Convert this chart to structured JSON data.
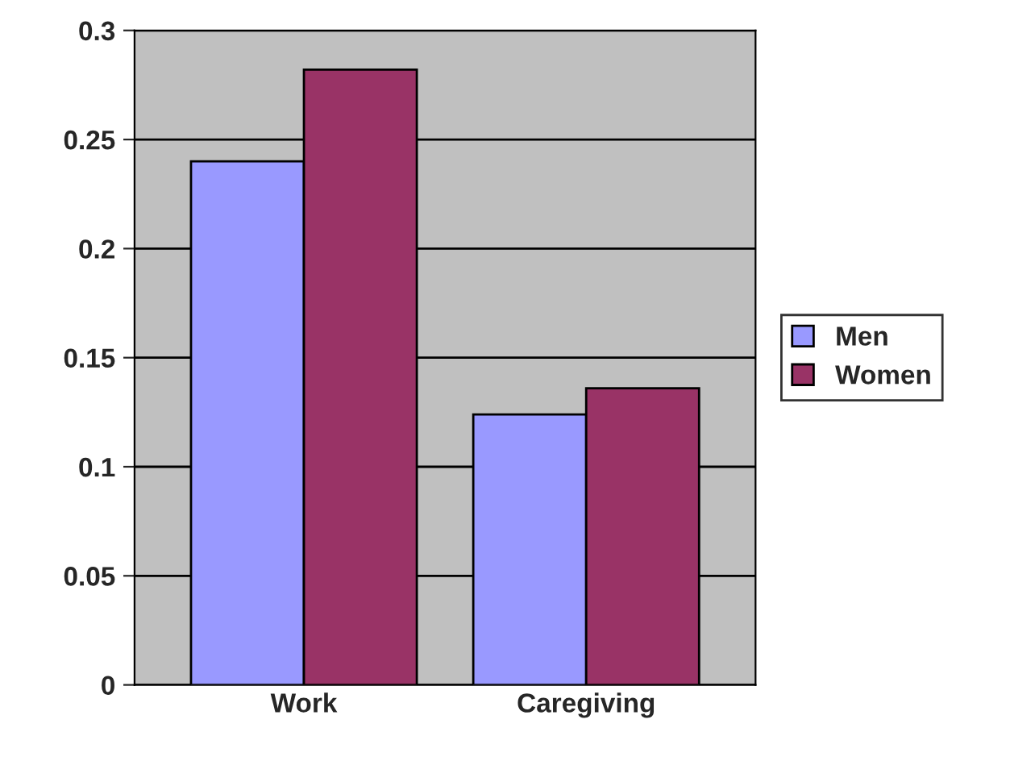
{
  "chart_data": {
    "type": "bar",
    "categories": [
      "Work",
      "Caregiving"
    ],
    "series": [
      {
        "name": "Men",
        "color": "#9999ff",
        "values": [
          0.24,
          0.124
        ]
      },
      {
        "name": "Women",
        "color": "#993366",
        "values": [
          0.282,
          0.136
        ]
      }
    ],
    "ylim": [
      0,
      0.3
    ],
    "yticks": [
      0,
      0.05,
      0.1,
      0.15,
      0.2,
      0.25,
      0.3
    ],
    "grid": "y",
    "legend": "right"
  }
}
